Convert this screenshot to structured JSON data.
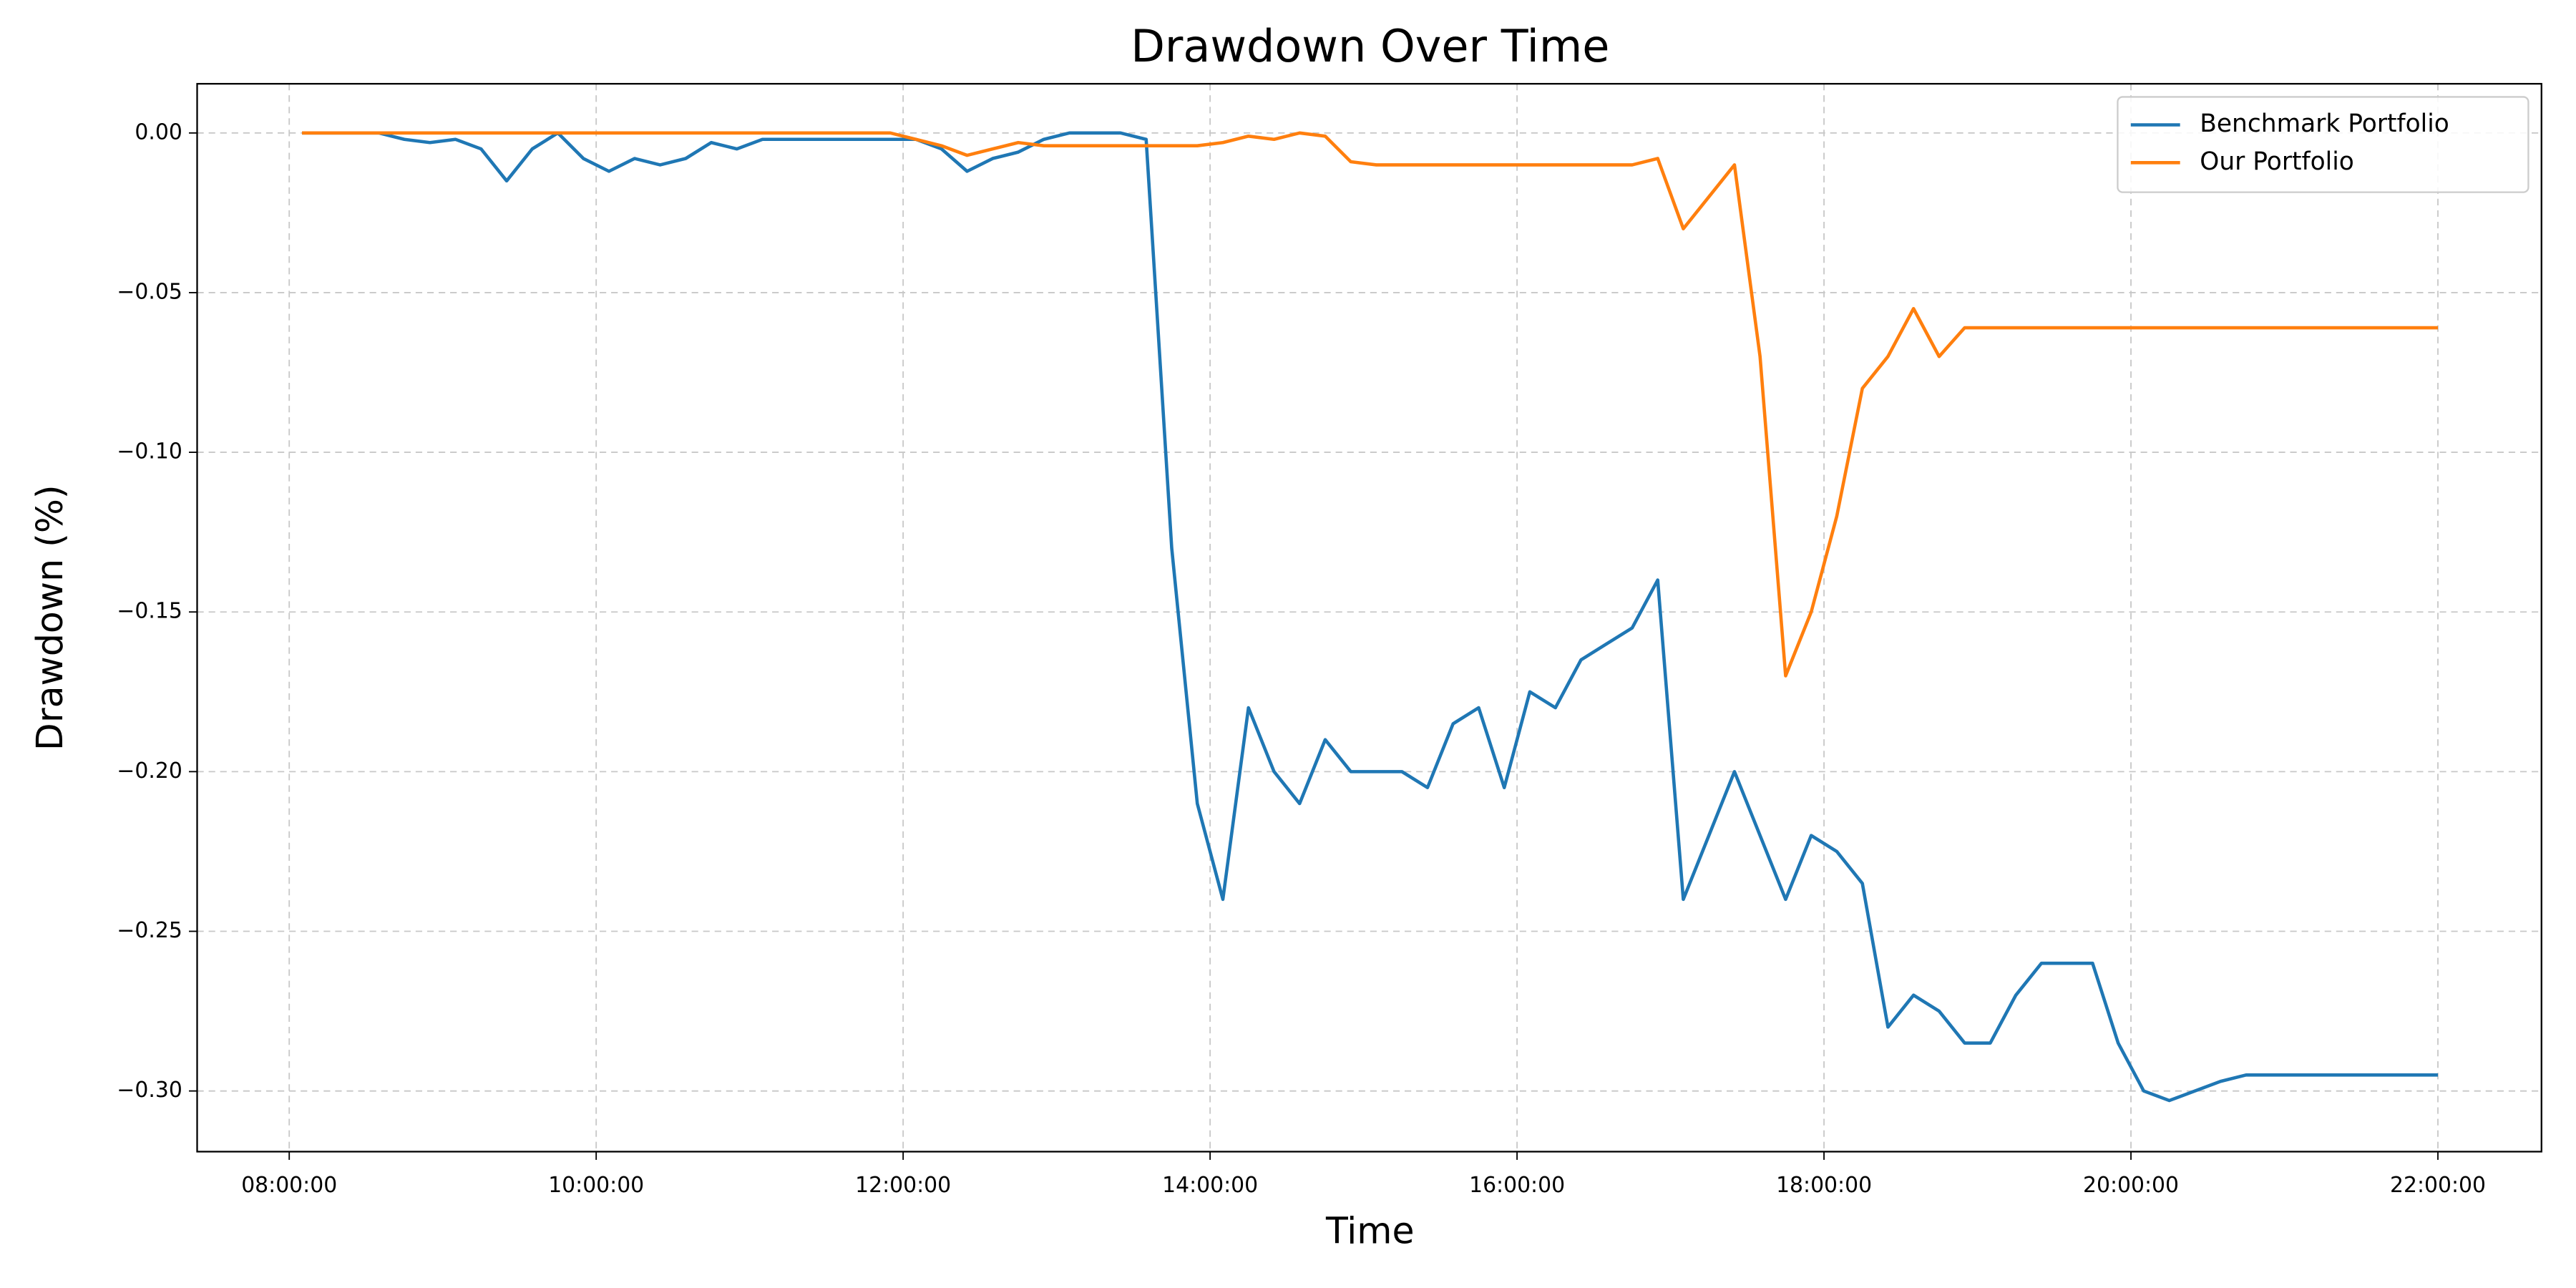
{
  "chart_data": {
    "type": "line",
    "title": "Drawdown Over Time",
    "xlabel": "Time",
    "ylabel": "Drawdown (%)",
    "x": [
      "08:05:00",
      "08:15:00",
      "08:25:00",
      "08:35:00",
      "08:45:00",
      "08:55:00",
      "09:05:00",
      "09:15:00",
      "09:25:00",
      "09:35:00",
      "09:45:00",
      "09:55:00",
      "10:05:00",
      "10:15:00",
      "10:25:00",
      "10:35:00",
      "10:45:00",
      "10:55:00",
      "11:05:00",
      "11:15:00",
      "11:25:00",
      "11:35:00",
      "11:45:00",
      "11:55:00",
      "12:05:00",
      "12:15:00",
      "12:25:00",
      "12:35:00",
      "12:45:00",
      "12:55:00",
      "13:05:00",
      "13:15:00",
      "13:25:00",
      "13:35:00",
      "13:45:00",
      "13:55:00",
      "14:05:00",
      "14:15:00",
      "14:25:00",
      "14:35:00",
      "14:45:00",
      "14:55:00",
      "15:05:00",
      "15:15:00",
      "15:25:00",
      "15:35:00",
      "15:45:00",
      "15:55:00",
      "16:05:00",
      "16:15:00",
      "16:25:00",
      "16:35:00",
      "16:45:00",
      "16:55:00",
      "17:05:00",
      "17:15:00",
      "17:25:00",
      "17:35:00",
      "17:45:00",
      "17:55:00",
      "18:05:00",
      "18:15:00",
      "18:25:00",
      "18:35:00",
      "18:45:00",
      "18:55:00",
      "19:05:00",
      "19:15:00",
      "19:25:00",
      "19:35:00",
      "19:45:00",
      "19:55:00",
      "20:05:00",
      "20:15:00",
      "20:25:00",
      "20:35:00",
      "20:45:00",
      "20:55:00",
      "21:05:00",
      "21:15:00",
      "21:25:00",
      "21:35:00",
      "21:45:00",
      "21:55:00",
      "22:00:00"
    ],
    "series": [
      {
        "name": "Benchmark Portfolio",
        "color": "#1f77b4",
        "values": [
          0,
          0,
          0,
          0,
          -0.002,
          -0.003,
          -0.002,
          -0.005,
          -0.015,
          -0.005,
          0,
          -0.008,
          -0.012,
          -0.008,
          -0.01,
          -0.008,
          -0.003,
          -0.005,
          -0.002,
          -0.002,
          -0.002,
          -0.002,
          -0.002,
          -0.002,
          -0.002,
          -0.005,
          -0.012,
          -0.008,
          -0.006,
          -0.002,
          0,
          0,
          0,
          -0.002,
          -0.13,
          -0.21,
          -0.24,
          -0.18,
          -0.2,
          -0.21,
          -0.19,
          -0.2,
          -0.2,
          -0.2,
          -0.205,
          -0.185,
          -0.18,
          -0.205,
          -0.175,
          -0.18,
          -0.165,
          -0.16,
          -0.155,
          -0.14,
          -0.24,
          -0.22,
          -0.2,
          -0.22,
          -0.24,
          -0.22,
          -0.225,
          -0.235,
          -0.28,
          -0.27,
          -0.275,
          -0.285,
          -0.285,
          -0.27,
          -0.26,
          -0.26,
          -0.26,
          -0.285,
          -0.3,
          -0.303,
          -0.3,
          -0.297,
          -0.295,
          -0.295,
          -0.295,
          -0.295,
          -0.295,
          -0.295,
          -0.295,
          -0.295,
          -0.295
        ]
      },
      {
        "name": "Our Portfolio",
        "color": "#ff7f0e",
        "values": [
          0,
          0,
          0,
          0,
          0,
          0,
          0,
          0,
          0,
          0,
          0,
          0,
          0,
          0,
          0,
          0,
          0,
          0,
          0,
          0,
          0,
          0,
          0,
          0,
          -0.002,
          -0.004,
          -0.007,
          -0.005,
          -0.003,
          -0.004,
          -0.004,
          -0.004,
          -0.004,
          -0.004,
          -0.004,
          -0.004,
          -0.003,
          -0.001,
          -0.002,
          0,
          -0.001,
          -0.009,
          -0.01,
          -0.01,
          -0.01,
          -0.01,
          -0.01,
          -0.01,
          -0.01,
          -0.01,
          -0.01,
          -0.01,
          -0.01,
          -0.008,
          -0.03,
          -0.02,
          -0.01,
          -0.07,
          -0.17,
          -0.15,
          -0.12,
          -0.08,
          -0.07,
          -0.055,
          -0.07,
          -0.061,
          -0.061,
          -0.061,
          -0.061,
          -0.061,
          -0.061,
          -0.061,
          -0.061,
          -0.061,
          -0.061,
          -0.061,
          -0.061,
          -0.061,
          -0.061,
          -0.061,
          -0.061,
          -0.061,
          -0.061,
          -0.061,
          -0.061
        ]
      }
    ],
    "xlim": [
      "07:24:00",
      "22:40:30"
    ],
    "xticks": [
      "08:00:00",
      "10:00:00",
      "12:00:00",
      "14:00:00",
      "16:00:00",
      "18:00:00",
      "20:00:00",
      "22:00:00"
    ],
    "ylim": [
      -0.319,
      0.0154
    ],
    "yticks": [
      {
        "value": 0,
        "label": "0.00"
      },
      {
        "value": -0.05,
        "label": "−0.05"
      },
      {
        "value": -0.1,
        "label": "−0.10"
      },
      {
        "value": -0.15,
        "label": "−0.15"
      },
      {
        "value": -0.2,
        "label": "−0.20"
      },
      {
        "value": -0.25,
        "label": "−0.25"
      },
      {
        "value": -0.3,
        "label": "−0.30"
      }
    ],
    "grid": true,
    "legend": "upper right"
  }
}
